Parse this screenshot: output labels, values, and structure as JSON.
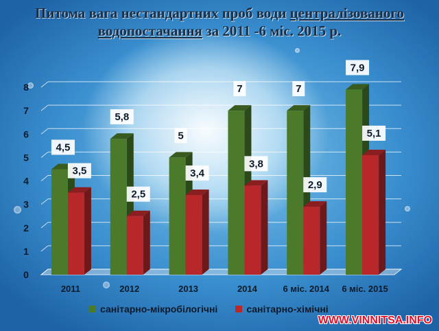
{
  "title_parts": {
    "part1": "Питома вага нестандартних проб  води ",
    "part2": "централізованого",
    "part3": "водопостачання",
    "part4": "  за 2011 -6 міс. 2015 р."
  },
  "watermark": "WWW.VINNITSA.INFO",
  "colors": {
    "series1": "#4a7a2a",
    "series2": "#b8282a"
  },
  "chart_data": {
    "type": "bar",
    "categories": [
      "2011",
      "2012",
      "2013",
      "2014",
      "6  міс. 2014",
      "6 міс. 2015"
    ],
    "series": [
      {
        "name": "санітарно-мікробілогічні",
        "values": [
          4.5,
          5.8,
          5,
          7,
          7,
          7.9
        ],
        "labels": [
          "4,5",
          "5,8",
          "5",
          "7",
          "7",
          "7,9"
        ]
      },
      {
        "name": "санітарно-хімічні",
        "values": [
          3.5,
          2.5,
          3.4,
          3.8,
          2.9,
          5.1
        ],
        "labels": [
          "3,5",
          "2,5",
          "3,4",
          "3,8",
          "2,9",
          "5,1"
        ]
      }
    ],
    "yticks": [
      "0",
      "1",
      "2",
      "3",
      "4",
      "5",
      "6",
      "7",
      "8"
    ],
    "ylim": [
      0,
      8
    ],
    "grid": true,
    "legend": "bottom"
  }
}
